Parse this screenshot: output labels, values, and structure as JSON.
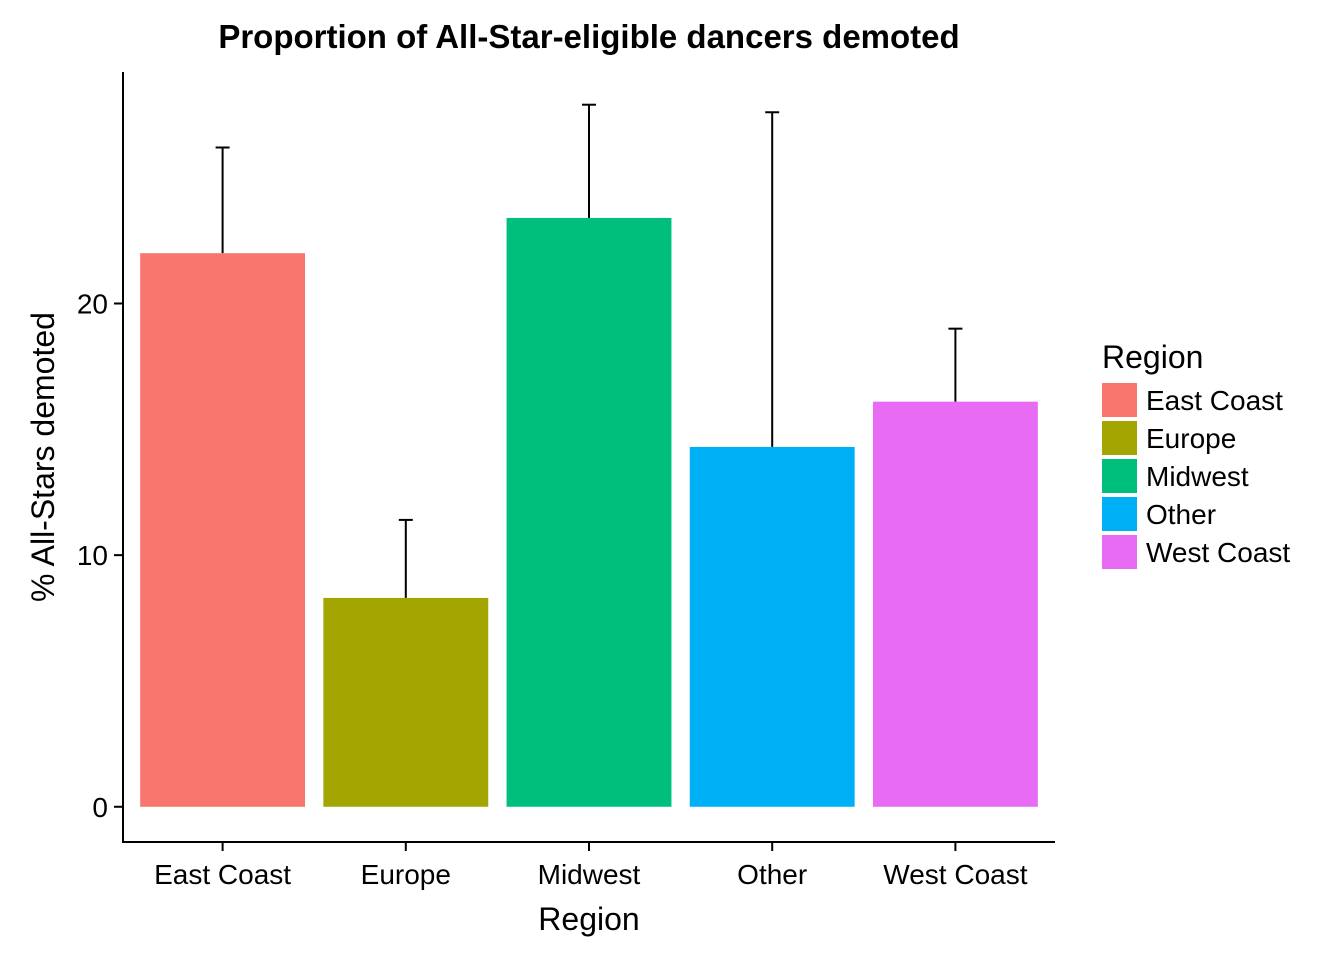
{
  "chart_data": {
    "type": "bar",
    "title": "Proportion of All-Star-eligible dancers demoted",
    "xlabel": "Region",
    "ylabel": "% All-Stars demoted",
    "categories": [
      "East Coast",
      "Europe",
      "Midwest",
      "Other",
      "West Coast"
    ],
    "values": [
      22.0,
      8.3,
      23.4,
      14.3,
      16.1
    ],
    "error_upper": [
      26.2,
      11.4,
      27.9,
      27.6,
      19.0
    ],
    "colors": [
      "#F8766D",
      "#A3A500",
      "#00BF7D",
      "#00B0F6",
      "#E76BF3"
    ],
    "ylim": [
      -1.4,
      29.2
    ],
    "yticks": [
      0,
      10,
      20
    ],
    "grid": false,
    "legend": {
      "title": "Region",
      "position": "right",
      "entries": [
        "East Coast",
        "Europe",
        "Midwest",
        "Other",
        "West Coast"
      ]
    }
  }
}
